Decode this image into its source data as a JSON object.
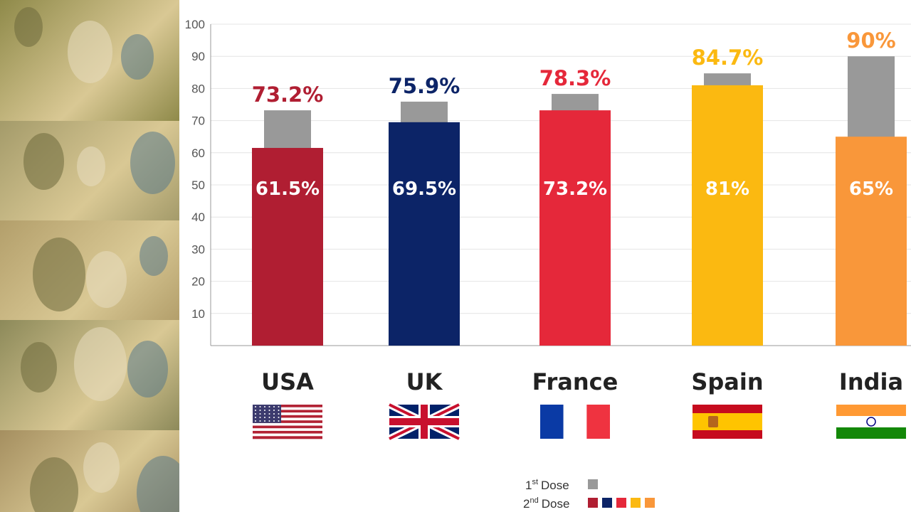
{
  "chart_data": {
    "type": "bar",
    "categories": [
      "USA",
      "UK",
      "France",
      "Spain",
      "India"
    ],
    "series": [
      {
        "name": "1st Dose",
        "values": [
          73.2,
          75.9,
          78.3,
          84.7,
          90
        ]
      },
      {
        "name": "2nd Dose",
        "values": [
          61.5,
          69.5,
          73.2,
          81,
          65
        ]
      }
    ],
    "top_labels": [
      "73.2%",
      "75.9%",
      "78.3%",
      "84.7%",
      "90%"
    ],
    "inner_labels": [
      "61.5%",
      "69.5%",
      "73.2%",
      "81%",
      "65%"
    ],
    "ylim": [
      0,
      100
    ],
    "yticks": [
      10,
      20,
      30,
      40,
      50,
      60,
      70,
      80,
      90,
      100
    ],
    "title": "",
    "xlabel": "",
    "ylabel": "",
    "grid": true
  },
  "colors": {
    "first_dose": "#999999",
    "country": [
      "#b01e32",
      "#0c2467",
      "#e5283a",
      "#fbb911",
      "#f9973a"
    ]
  },
  "legend": {
    "first": {
      "ordinal": "1",
      "suffix": "st",
      "label": "Dose"
    },
    "second": {
      "ordinal": "2",
      "suffix": "nd",
      "label": "Dose"
    }
  },
  "flags": [
    "us-flag",
    "uk-flag",
    "france-flag",
    "spain-flag",
    "india-flag"
  ]
}
